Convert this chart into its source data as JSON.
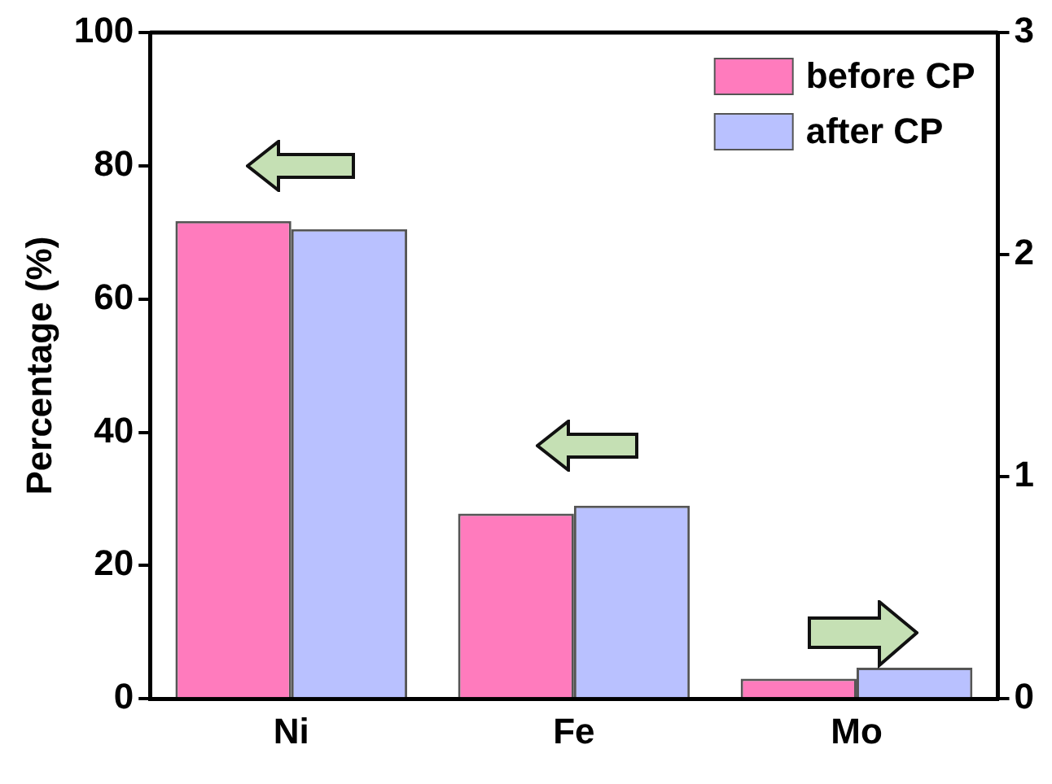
{
  "chart_data": {
    "type": "bar",
    "ylabel": "Percentage (%)",
    "categories": [
      "Ni",
      "Fe",
      "Mo"
    ],
    "series": [
      {
        "name": "before CP",
        "color": "#ff7bbd",
        "values": [
          71.7,
          27.8,
          null
        ]
      },
      {
        "name": "after CP",
        "color": "#b9c1ff",
        "values": [
          70.5,
          29.0,
          null
        ]
      },
      {
        "color": "#ff7bbd",
        "values": [
          null,
          null,
          0.09
        ],
        "axis": "y2"
      },
      {
        "color": "#b9c1ff",
        "values": [
          null,
          null,
          0.14
        ],
        "axis": "y2"
      }
    ],
    "ylim": [
      0,
      100
    ],
    "yticks": [
      0,
      20,
      40,
      60,
      80,
      100
    ],
    "y2lim": [
      0,
      3
    ],
    "y2ticks": [
      0,
      1,
      2,
      3
    ],
    "grid": false,
    "legend": "top right"
  }
}
